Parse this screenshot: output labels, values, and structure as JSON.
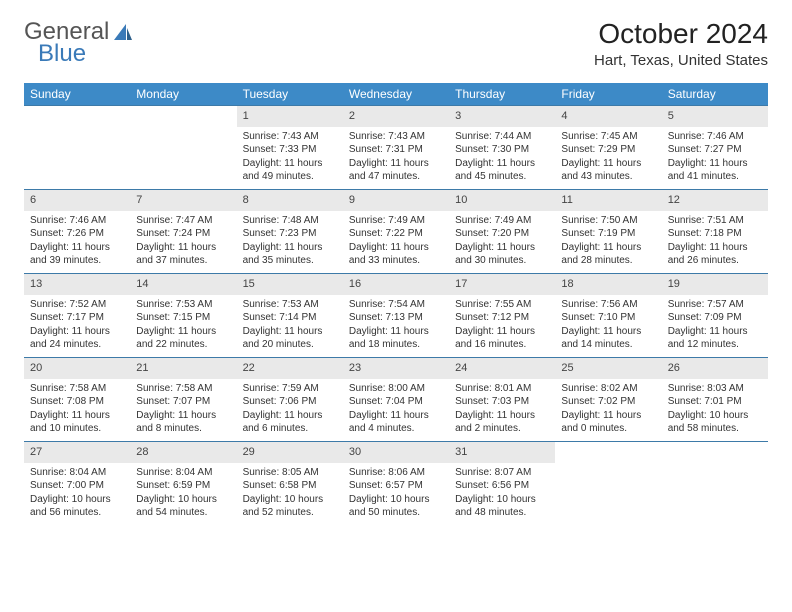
{
  "logo": {
    "text1": "General",
    "text2": "Blue"
  },
  "title": "October 2024",
  "location": "Hart, Texas, United States",
  "colors": {
    "header_bg": "#3d8ac7",
    "header_text": "#ffffff",
    "daynum_bg": "#e9e9e9",
    "week_border": "#3d7aa8",
    "logo_accent": "#3a7ab8"
  },
  "day_headers": [
    "Sunday",
    "Monday",
    "Tuesday",
    "Wednesday",
    "Thursday",
    "Friday",
    "Saturday"
  ],
  "weeks": [
    [
      {
        "n": "",
        "sr": "",
        "ss": "",
        "dl": ""
      },
      {
        "n": "",
        "sr": "",
        "ss": "",
        "dl": ""
      },
      {
        "n": "1",
        "sr": "Sunrise: 7:43 AM",
        "ss": "Sunset: 7:33 PM",
        "dl": "Daylight: 11 hours and 49 minutes."
      },
      {
        "n": "2",
        "sr": "Sunrise: 7:43 AM",
        "ss": "Sunset: 7:31 PM",
        "dl": "Daylight: 11 hours and 47 minutes."
      },
      {
        "n": "3",
        "sr": "Sunrise: 7:44 AM",
        "ss": "Sunset: 7:30 PM",
        "dl": "Daylight: 11 hours and 45 minutes."
      },
      {
        "n": "4",
        "sr": "Sunrise: 7:45 AM",
        "ss": "Sunset: 7:29 PM",
        "dl": "Daylight: 11 hours and 43 minutes."
      },
      {
        "n": "5",
        "sr": "Sunrise: 7:46 AM",
        "ss": "Sunset: 7:27 PM",
        "dl": "Daylight: 11 hours and 41 minutes."
      }
    ],
    [
      {
        "n": "6",
        "sr": "Sunrise: 7:46 AM",
        "ss": "Sunset: 7:26 PM",
        "dl": "Daylight: 11 hours and 39 minutes."
      },
      {
        "n": "7",
        "sr": "Sunrise: 7:47 AM",
        "ss": "Sunset: 7:24 PM",
        "dl": "Daylight: 11 hours and 37 minutes."
      },
      {
        "n": "8",
        "sr": "Sunrise: 7:48 AM",
        "ss": "Sunset: 7:23 PM",
        "dl": "Daylight: 11 hours and 35 minutes."
      },
      {
        "n": "9",
        "sr": "Sunrise: 7:49 AM",
        "ss": "Sunset: 7:22 PM",
        "dl": "Daylight: 11 hours and 33 minutes."
      },
      {
        "n": "10",
        "sr": "Sunrise: 7:49 AM",
        "ss": "Sunset: 7:20 PM",
        "dl": "Daylight: 11 hours and 30 minutes."
      },
      {
        "n": "11",
        "sr": "Sunrise: 7:50 AM",
        "ss": "Sunset: 7:19 PM",
        "dl": "Daylight: 11 hours and 28 minutes."
      },
      {
        "n": "12",
        "sr": "Sunrise: 7:51 AM",
        "ss": "Sunset: 7:18 PM",
        "dl": "Daylight: 11 hours and 26 minutes."
      }
    ],
    [
      {
        "n": "13",
        "sr": "Sunrise: 7:52 AM",
        "ss": "Sunset: 7:17 PM",
        "dl": "Daylight: 11 hours and 24 minutes."
      },
      {
        "n": "14",
        "sr": "Sunrise: 7:53 AM",
        "ss": "Sunset: 7:15 PM",
        "dl": "Daylight: 11 hours and 22 minutes."
      },
      {
        "n": "15",
        "sr": "Sunrise: 7:53 AM",
        "ss": "Sunset: 7:14 PM",
        "dl": "Daylight: 11 hours and 20 minutes."
      },
      {
        "n": "16",
        "sr": "Sunrise: 7:54 AM",
        "ss": "Sunset: 7:13 PM",
        "dl": "Daylight: 11 hours and 18 minutes."
      },
      {
        "n": "17",
        "sr": "Sunrise: 7:55 AM",
        "ss": "Sunset: 7:12 PM",
        "dl": "Daylight: 11 hours and 16 minutes."
      },
      {
        "n": "18",
        "sr": "Sunrise: 7:56 AM",
        "ss": "Sunset: 7:10 PM",
        "dl": "Daylight: 11 hours and 14 minutes."
      },
      {
        "n": "19",
        "sr": "Sunrise: 7:57 AM",
        "ss": "Sunset: 7:09 PM",
        "dl": "Daylight: 11 hours and 12 minutes."
      }
    ],
    [
      {
        "n": "20",
        "sr": "Sunrise: 7:58 AM",
        "ss": "Sunset: 7:08 PM",
        "dl": "Daylight: 11 hours and 10 minutes."
      },
      {
        "n": "21",
        "sr": "Sunrise: 7:58 AM",
        "ss": "Sunset: 7:07 PM",
        "dl": "Daylight: 11 hours and 8 minutes."
      },
      {
        "n": "22",
        "sr": "Sunrise: 7:59 AM",
        "ss": "Sunset: 7:06 PM",
        "dl": "Daylight: 11 hours and 6 minutes."
      },
      {
        "n": "23",
        "sr": "Sunrise: 8:00 AM",
        "ss": "Sunset: 7:04 PM",
        "dl": "Daylight: 11 hours and 4 minutes."
      },
      {
        "n": "24",
        "sr": "Sunrise: 8:01 AM",
        "ss": "Sunset: 7:03 PM",
        "dl": "Daylight: 11 hours and 2 minutes."
      },
      {
        "n": "25",
        "sr": "Sunrise: 8:02 AM",
        "ss": "Sunset: 7:02 PM",
        "dl": "Daylight: 11 hours and 0 minutes."
      },
      {
        "n": "26",
        "sr": "Sunrise: 8:03 AM",
        "ss": "Sunset: 7:01 PM",
        "dl": "Daylight: 10 hours and 58 minutes."
      }
    ],
    [
      {
        "n": "27",
        "sr": "Sunrise: 8:04 AM",
        "ss": "Sunset: 7:00 PM",
        "dl": "Daylight: 10 hours and 56 minutes."
      },
      {
        "n": "28",
        "sr": "Sunrise: 8:04 AM",
        "ss": "Sunset: 6:59 PM",
        "dl": "Daylight: 10 hours and 54 minutes."
      },
      {
        "n": "29",
        "sr": "Sunrise: 8:05 AM",
        "ss": "Sunset: 6:58 PM",
        "dl": "Daylight: 10 hours and 52 minutes."
      },
      {
        "n": "30",
        "sr": "Sunrise: 8:06 AM",
        "ss": "Sunset: 6:57 PM",
        "dl": "Daylight: 10 hours and 50 minutes."
      },
      {
        "n": "31",
        "sr": "Sunrise: 8:07 AM",
        "ss": "Sunset: 6:56 PM",
        "dl": "Daylight: 10 hours and 48 minutes."
      },
      {
        "n": "",
        "sr": "",
        "ss": "",
        "dl": ""
      },
      {
        "n": "",
        "sr": "",
        "ss": "",
        "dl": ""
      }
    ]
  ]
}
